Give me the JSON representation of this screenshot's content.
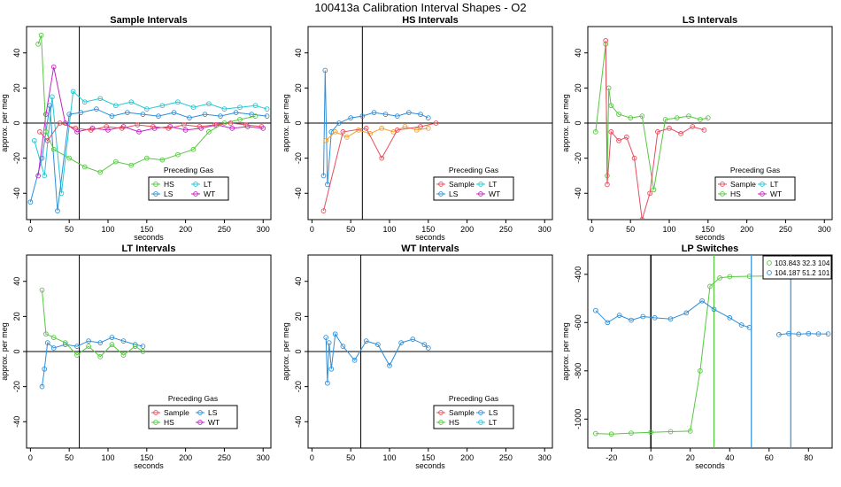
{
  "figure_title": "100413a   Calibration Interval Shapes - O2",
  "colors": {
    "Sample": "#e64d5e",
    "HS": "#55c83f",
    "LS": "#2f8fd8",
    "LT": "#22c9d4",
    "WT": "#c226c2",
    "orange": "#f0a030"
  },
  "chart_data": [
    {
      "type": "scatter",
      "title": "Sample Intervals",
      "xlabel": "seconds",
      "ylabel": "approx. per meg",
      "xlim": [
        -5,
        310
      ],
      "ylim": [
        -55,
        55
      ],
      "xticks": [
        0,
        50,
        100,
        150,
        200,
        250,
        300
      ],
      "yticks": [
        -40,
        -20,
        0,
        20,
        40
      ],
      "vline": 63,
      "hline": 0,
      "legend": {
        "title": "Preceding Gas",
        "entries": [
          "HS",
          "LT",
          "LS",
          "WT"
        ],
        "colors": [
          "HS",
          "LT",
          "LS",
          "WT"
        ]
      },
      "series": [
        {
          "name": "LT",
          "x": [
            5,
            18,
            28,
            40,
            55,
            70,
            90,
            110,
            130,
            150,
            170,
            190,
            210,
            230,
            250,
            270,
            290,
            305
          ],
          "y": [
            -10,
            -30,
            15,
            -40,
            18,
            12,
            14,
            10,
            12,
            8,
            10,
            12,
            9,
            11,
            8,
            9,
            10,
            8
          ]
        },
        {
          "name": "LS",
          "x": [
            0,
            15,
            25,
            35,
            50,
            65,
            85,
            105,
            125,
            145,
            165,
            185,
            205,
            225,
            245,
            265,
            285,
            305
          ],
          "y": [
            -45,
            -20,
            10,
            -50,
            5,
            6,
            8,
            4,
            6,
            5,
            4,
            6,
            3,
            5,
            4,
            6,
            5,
            4
          ]
        },
        {
          "name": "WT",
          "x": [
            10,
            20,
            30,
            45,
            60,
            80,
            100,
            120,
            140,
            160,
            180,
            200,
            220,
            240,
            260,
            280,
            300
          ],
          "y": [
            -30,
            5,
            32,
            0,
            -5,
            -3,
            -4,
            -2,
            -5,
            -3,
            -2,
            -4,
            -3,
            -1,
            -3,
            -2,
            -3
          ]
        },
        {
          "name": "HS",
          "x": [
            10,
            14,
            20,
            30,
            50,
            70,
            90,
            110,
            130,
            150,
            170,
            190,
            210,
            230,
            250,
            270,
            290
          ],
          "y": [
            45,
            50,
            -5,
            -15,
            -20,
            -25,
            -28,
            -22,
            -24,
            -20,
            -21,
            -18,
            -15,
            -5,
            0,
            2,
            4
          ]
        },
        {
          "name": "Sample",
          "x": [
            12,
            22,
            38,
            58,
            78,
            98,
            118,
            138,
            158,
            178,
            198,
            218,
            238,
            258,
            278,
            298
          ],
          "y": [
            -5,
            -10,
            0,
            -3,
            -4,
            -2,
            -3,
            -1,
            -2,
            -3,
            -1,
            -2,
            -1,
            0,
            -1,
            -2
          ]
        }
      ]
    },
    {
      "type": "scatter",
      "title": "HS Intervals",
      "xlabel": "seconds",
      "ylabel": "approx. per meg",
      "xlim": [
        -5,
        310
      ],
      "ylim": [
        -55,
        55
      ],
      "xticks": [
        0,
        50,
        100,
        150,
        200,
        250,
        300
      ],
      "yticks": [
        -40,
        -20,
        0,
        20,
        40
      ],
      "vline": 65,
      "hline": 0,
      "legend": {
        "title": "Preceding Gas",
        "entries": [
          "Sample",
          "LT",
          "LS",
          "WT"
        ],
        "colors": [
          "Sample",
          "LT",
          "LS",
          "WT"
        ]
      },
      "series": [
        {
          "name": "LS",
          "x": [
            15,
            17,
            20,
            25,
            35,
            50,
            65,
            80,
            95,
            110,
            125,
            140,
            150
          ],
          "y": [
            -30,
            30,
            -35,
            -5,
            0,
            3,
            4,
            6,
            5,
            4,
            6,
            5,
            3
          ]
        },
        {
          "name": "orange",
          "x": [
            18,
            30,
            45,
            60,
            75,
            90,
            105,
            120,
            135,
            150
          ],
          "y": [
            -10,
            -5,
            -8,
            -4,
            -6,
            -3,
            -5,
            -2,
            -4,
            -3
          ]
        },
        {
          "name": "Sample",
          "x": [
            15,
            40,
            70,
            90,
            110,
            140,
            160
          ],
          "y": [
            -50,
            -5,
            -3,
            -20,
            -4,
            -2,
            0
          ]
        }
      ]
    },
    {
      "type": "scatter",
      "title": "LS Intervals",
      "xlabel": "seconds",
      "ylabel": "approx. per meg",
      "xlim": [
        -5,
        310
      ],
      "ylim": [
        -55,
        55
      ],
      "xticks": [
        0,
        50,
        100,
        150,
        200,
        250,
        300
      ],
      "yticks": [
        -40,
        -20,
        0,
        20,
        40
      ],
      "vline": null,
      "hline": 0,
      "legend": {
        "title": "Preceding Gas",
        "entries": [
          "Sample",
          "LT",
          "HS",
          "WT"
        ],
        "colors": [
          "Sample",
          "LT",
          "HS",
          "WT"
        ]
      },
      "series": [
        {
          "name": "HS",
          "x": [
            5,
            18,
            20,
            22,
            25,
            35,
            50,
            65,
            80,
            95,
            110,
            125,
            140,
            150
          ],
          "y": [
            -5,
            45,
            -30,
            20,
            10,
            5,
            3,
            4,
            -38,
            2,
            3,
            4,
            2,
            3
          ]
        },
        {
          "name": "Sample",
          "x": [
            18,
            20,
            25,
            35,
            45,
            55,
            65,
            75,
            85,
            100,
            115,
            130,
            145
          ],
          "y": [
            47,
            -35,
            -5,
            -10,
            -8,
            -20,
            -55,
            -40,
            -5,
            -3,
            -6,
            -2,
            -4
          ]
        }
      ]
    },
    {
      "type": "scatter",
      "title": "LT Intervals",
      "xlabel": "seconds",
      "ylabel": "approx. per meg",
      "xlim": [
        -5,
        310
      ],
      "ylim": [
        -55,
        55
      ],
      "xticks": [
        0,
        50,
        100,
        150,
        200,
        250,
        300
      ],
      "yticks": [
        -40,
        -20,
        0,
        20,
        40
      ],
      "vline": 63,
      "hline": 0,
      "legend": {
        "title": "Preceding Gas",
        "entries": [
          "Sample",
          "LS",
          "HS",
          "WT"
        ],
        "colors": [
          "Sample",
          "LS",
          "HS",
          "WT"
        ]
      },
      "series": [
        {
          "name": "LS",
          "x": [
            15,
            18,
            22,
            30,
            45,
            60,
            75,
            90,
            105,
            120,
            135,
            145
          ],
          "y": [
            -20,
            -10,
            5,
            2,
            4,
            3,
            6,
            5,
            8,
            6,
            4,
            3
          ]
        },
        {
          "name": "HS",
          "x": [
            15,
            20,
            30,
            45,
            60,
            75,
            90,
            105,
            120,
            135,
            145
          ],
          "y": [
            35,
            10,
            8,
            5,
            -2,
            3,
            -3,
            4,
            -2,
            3,
            0
          ]
        }
      ]
    },
    {
      "type": "scatter",
      "title": "WT Intervals",
      "xlabel": "seconds",
      "ylabel": "approx. per meg",
      "xlim": [
        -5,
        310
      ],
      "ylim": [
        -55,
        55
      ],
      "xticks": [
        0,
        50,
        100,
        150,
        200,
        250,
        300
      ],
      "yticks": [
        -40,
        -20,
        0,
        20,
        40
      ],
      "vline": 63,
      "hline": 0,
      "legend": {
        "title": "Preceding Gas",
        "entries": [
          "Sample",
          "LS",
          "HS",
          "LT"
        ],
        "colors": [
          "Sample",
          "LS",
          "HS",
          "LT"
        ]
      },
      "series": [
        {
          "name": "LS",
          "x": [
            18,
            20,
            22,
            25,
            30,
            40,
            55,
            70,
            85,
            100,
            115,
            130,
            145,
            150
          ],
          "y": [
            8,
            -18,
            5,
            -10,
            10,
            3,
            -5,
            6,
            4,
            -8,
            5,
            7,
            4,
            2
          ]
        }
      ]
    },
    {
      "type": "line",
      "title": "LP Switches",
      "xlabel": "seconds",
      "ylabel": "approx. per meg",
      "xlim": [
        -32,
        92
      ],
      "ylim": [
        -1120,
        -320
      ],
      "xticks": [
        -20,
        0,
        20,
        40,
        60,
        80
      ],
      "yticks": [
        -1000,
        -800,
        -600,
        -400
      ],
      "vline": 0,
      "hline": null,
      "legend": {
        "position": "top-right",
        "entries": [
          "103.843 32.3 104",
          "104.187 51.2 101"
        ],
        "colors": [
          "HS",
          "LS"
        ]
      },
      "series": [
        {
          "name": "HS",
          "x": [
            -28,
            -20,
            -10,
            0,
            10,
            20,
            25,
            30,
            35,
            40,
            50,
            60,
            70,
            85
          ],
          "y": [
            -1060,
            -1062,
            -1058,
            -1055,
            -1052,
            -1050,
            -800,
            -450,
            -415,
            -410,
            -408,
            -407,
            -405,
            -405
          ],
          "vline_x": 32
        },
        {
          "name": "LS",
          "x": [
            -28,
            -22,
            -16,
            -10,
            -4,
            2,
            10,
            18,
            26,
            32,
            40,
            46,
            50
          ],
          "y": [
            -550,
            -600,
            -570,
            -590,
            -575,
            -580,
            -585,
            -560,
            -510,
            -545,
            -580,
            -610,
            -620
          ],
          "vline_x": 51
        },
        {
          "name": "LS",
          "x": [
            65,
            70,
            75,
            80,
            85,
            90
          ],
          "y": [
            -650,
            -645,
            -648,
            -646,
            -647,
            -647
          ],
          "vline_x": 71
        }
      ]
    }
  ]
}
